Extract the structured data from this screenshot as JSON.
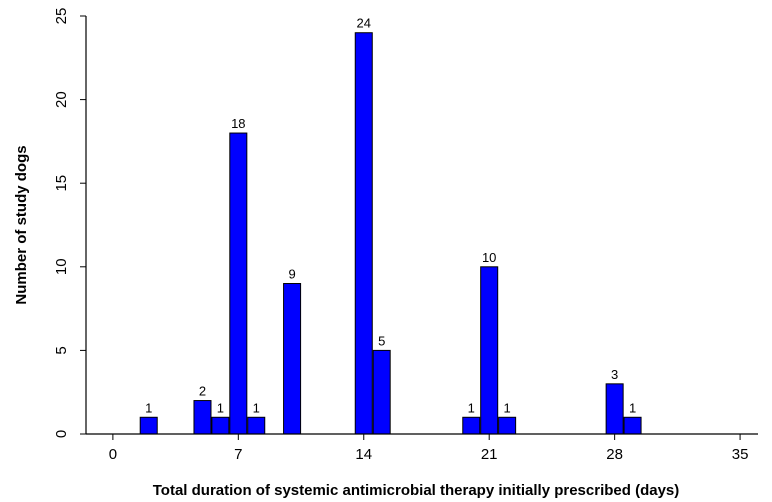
{
  "chart_data": {
    "type": "bar",
    "xlabel": "Total duration of systemic antimicrobial therapy initially prescribed (days)",
    "ylabel": "Number of study dogs",
    "xlim": [
      -1.5,
      36
    ],
    "ylim": [
      0,
      25
    ],
    "xticks": [
      0,
      7,
      14,
      21,
      28,
      35
    ],
    "yticks": [
      0,
      5,
      10,
      15,
      20,
      25
    ],
    "grid": false,
    "bar_color": "#0000ff",
    "bar_edge_color": "#000000",
    "x": [
      2,
      5,
      6,
      7,
      8,
      10,
      14,
      15,
      20,
      21,
      22,
      28,
      29
    ],
    "values": [
      1,
      2,
      1,
      18,
      1,
      9,
      24,
      5,
      1,
      10,
      1,
      3,
      1
    ],
    "data_labels": [
      "1",
      "2",
      "1",
      "18",
      "1",
      "9",
      "24",
      "5",
      "1",
      "10",
      "1",
      "3",
      "1"
    ]
  }
}
